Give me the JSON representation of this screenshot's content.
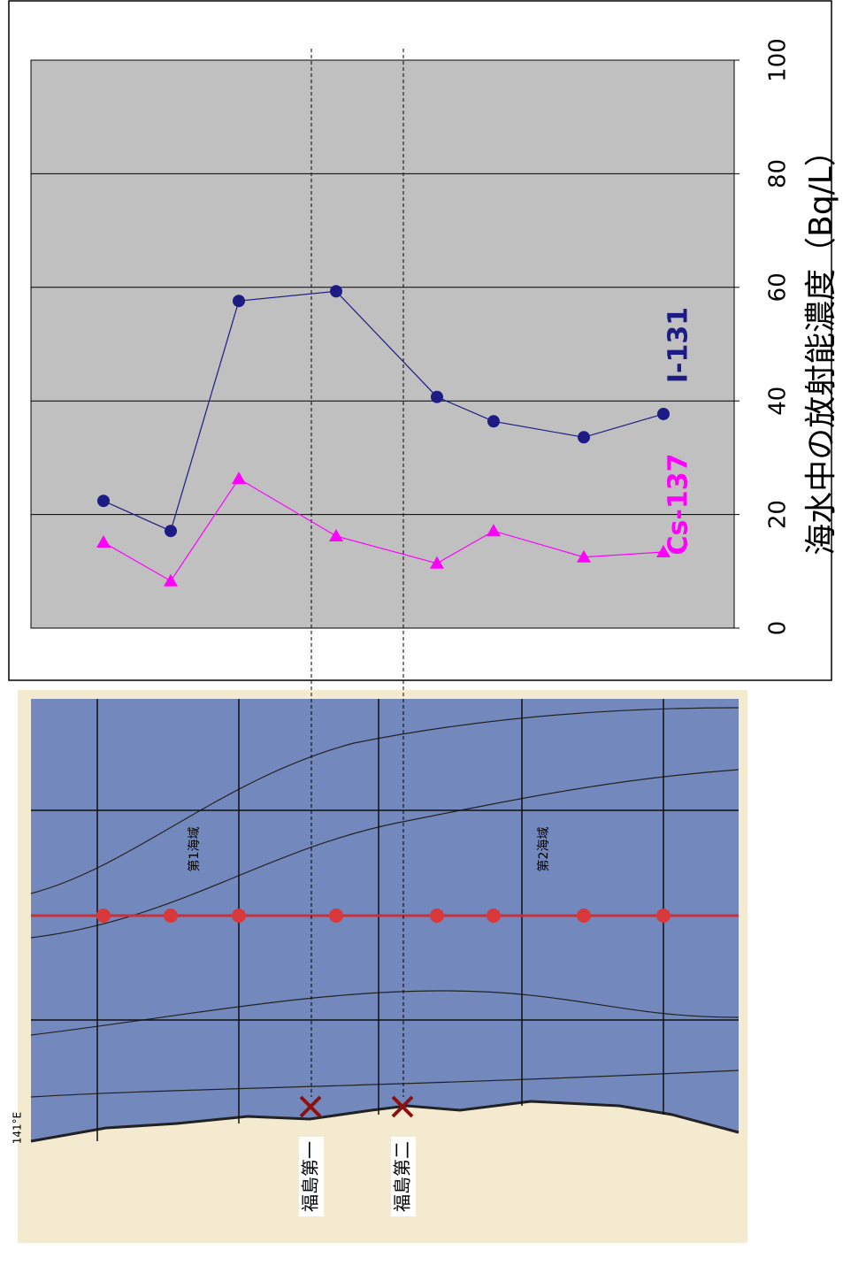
{
  "chart_data": {
    "type": "line",
    "y_label": "海水中の放射能濃度（Bq/L）",
    "categories": [
      null,
      null,
      null,
      null,
      null,
      null,
      null,
      null
    ],
    "series": [
      {
        "name": "I-131",
        "color": "#1c1c84",
        "marker": "circle",
        "values": [
          22.4,
          17.1,
          57.6,
          59.3,
          40.7,
          36.4,
          33.6,
          37.7
        ]
      },
      {
        "name": "Cs-137",
        "color": "#ff00ff",
        "marker": "triangle",
        "values": [
          15.1,
          8.3,
          26.3,
          16.2,
          11.4,
          17.1,
          12.5,
          13.4
        ]
      }
    ],
    "ylim": [
      0,
      100
    ],
    "yticks": [
      0,
      20,
      40,
      60,
      80,
      100
    ],
    "grid": true
  },
  "map": {
    "plant1": "福島第一",
    "plant2": "福島第二",
    "area1": "第1海域",
    "area2": "第2海域",
    "lon": "141°E"
  }
}
